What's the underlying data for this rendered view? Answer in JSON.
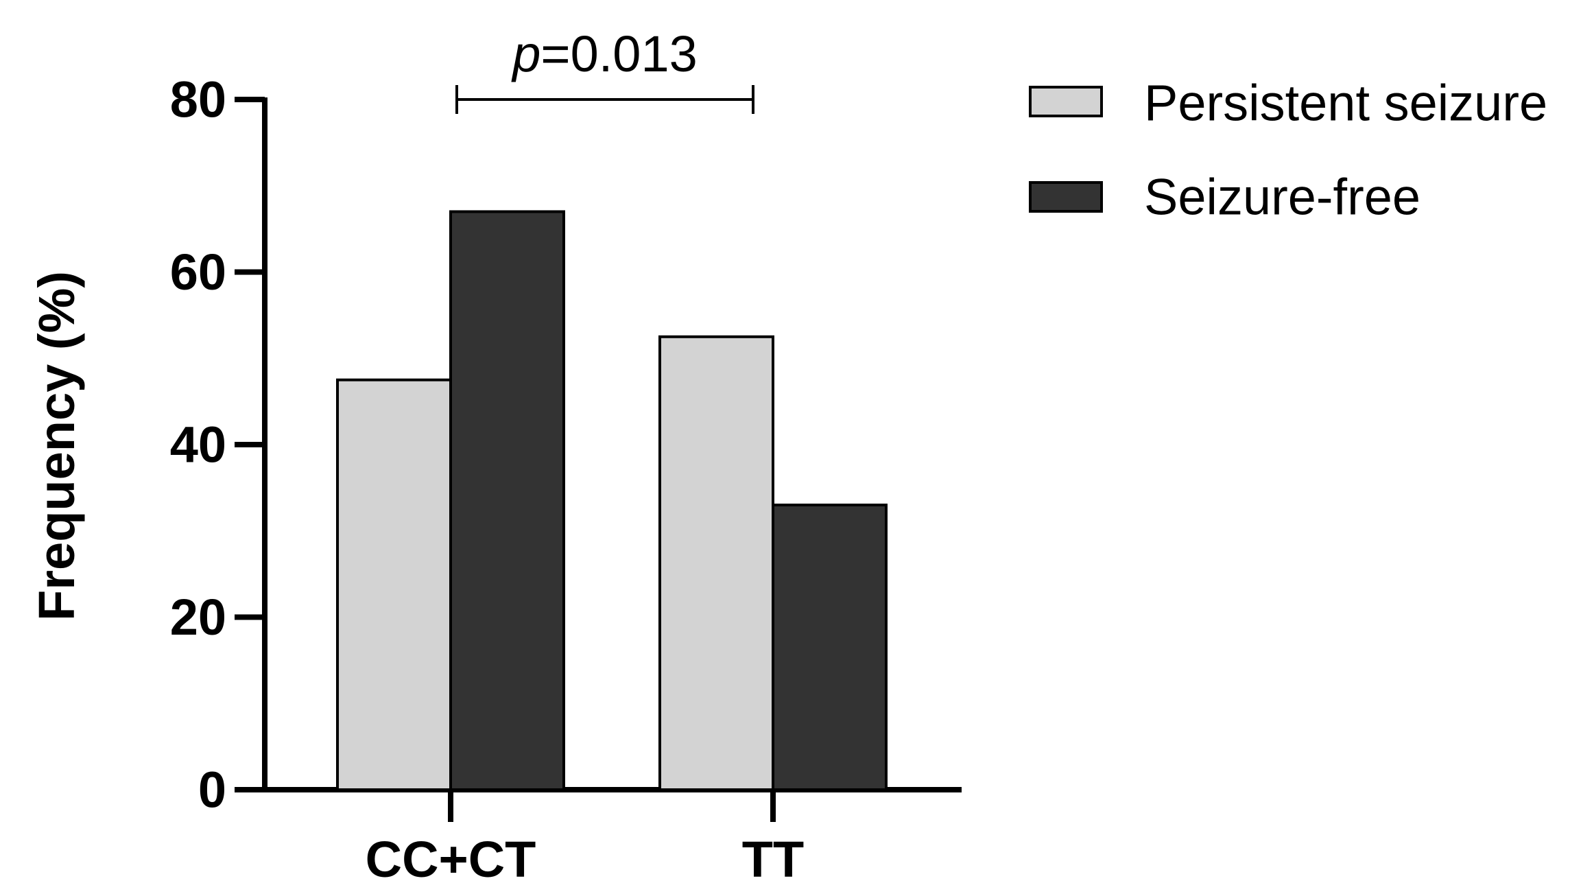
{
  "chart_data": {
    "type": "bar",
    "categories": [
      "CC+CT",
      "TT"
    ],
    "series": [
      {
        "name": "Persistent seizure",
        "values": [
          47.5,
          52.5
        ],
        "color": "#d3d3d3"
      },
      {
        "name": "Seizure-free",
        "values": [
          67,
          33
        ],
        "color": "#333333"
      }
    ],
    "title": "",
    "xlabel": "",
    "ylabel": "Frequency (%)",
    "ylim": [
      0,
      80
    ],
    "yticks": [
      "0",
      "20",
      "40",
      "60",
      "80"
    ],
    "legend_position": "top-right",
    "annotation": {
      "p_symbol": "p",
      "p_value": "=0.013",
      "between": [
        "CC+CT",
        "TT"
      ]
    }
  }
}
